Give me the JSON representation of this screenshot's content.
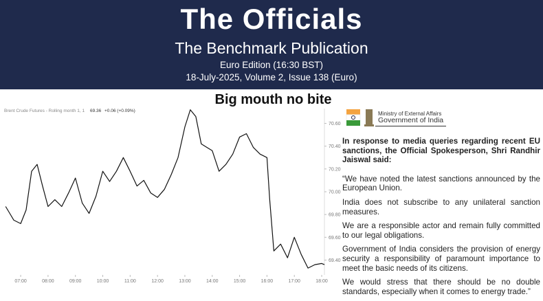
{
  "header": {
    "title": "The Officials",
    "subtitle": "The Benchmark Publication",
    "edition": "Euro Edition (16:30 BST)",
    "issue": "18-July-2025, Volume 2, Issue 138 (Euro)"
  },
  "headline": "Big mouth no bite",
  "chart_data": {
    "type": "line",
    "title": "Brent Crude Futures - Rolling month 1, 1",
    "last_value": "69.36",
    "change": "+0.06 (+0.09%)",
    "color": "#111111",
    "x": [
      6.45,
      6.6,
      6.75,
      7.0,
      7.2,
      7.4,
      7.6,
      7.8,
      8.0,
      8.25,
      8.5,
      8.75,
      9.0,
      9.25,
      9.5,
      9.75,
      10.0,
      10.25,
      10.5,
      10.75,
      11.0,
      11.25,
      11.5,
      11.75,
      12.0,
      12.25,
      12.5,
      12.75,
      13.0,
      13.2,
      13.4,
      13.6,
      13.8,
      14.0,
      14.25,
      14.5,
      14.75,
      15.0,
      15.25,
      15.5,
      15.75,
      16.0,
      16.1,
      16.25,
      16.5,
      16.75,
      17.0,
      17.25,
      17.5,
      17.75,
      18.0,
      18.1
    ],
    "values": [
      69.87,
      69.81,
      69.75,
      69.72,
      69.84,
      70.18,
      70.24,
      70.05,
      69.87,
      69.93,
      69.87,
      69.99,
      70.12,
      69.9,
      69.81,
      69.96,
      70.18,
      70.09,
      70.18,
      70.3,
      70.18,
      70.05,
      70.1,
      69.99,
      69.95,
      70.02,
      70.15,
      70.3,
      70.57,
      70.72,
      70.66,
      70.42,
      70.39,
      70.36,
      70.18,
      70.24,
      70.33,
      70.48,
      70.51,
      70.39,
      70.33,
      70.3,
      69.93,
      69.48,
      69.54,
      69.42,
      69.6,
      69.45,
      69.33,
      69.36,
      69.37,
      69.36
    ],
    "xlim": [
      6.37,
      18.15
    ],
    "ylim": [
      69.27,
      70.73
    ],
    "xticks": [
      {
        "value": 7,
        "label": "07:00"
      },
      {
        "value": 8,
        "label": "08:00"
      },
      {
        "value": 9,
        "label": "09:00"
      },
      {
        "value": 10,
        "label": "10:00"
      },
      {
        "value": 11,
        "label": "11:00"
      },
      {
        "value": 12,
        "label": "12:00"
      },
      {
        "value": 13,
        "label": "13:00"
      },
      {
        "value": 14,
        "label": "14:00"
      },
      {
        "value": 15,
        "label": "15:00"
      },
      {
        "value": 16,
        "label": "16:00"
      },
      {
        "value": 17,
        "label": "17:00"
      },
      {
        "value": 18,
        "label": "18:00"
      }
    ],
    "yticks": [
      {
        "value": 69.4,
        "label": "69.40"
      },
      {
        "value": 69.6,
        "label": "69.60"
      },
      {
        "value": 69.8,
        "label": "69.80"
      },
      {
        "value": 70,
        "label": "70.00"
      },
      {
        "value": 70.2,
        "label": "70.20"
      },
      {
        "value": 70.4,
        "label": "70.40"
      },
      {
        "value": 70.6,
        "label": "70.60"
      }
    ]
  },
  "statement": {
    "ministry": "Ministry of External Affairs",
    "government": "Government of India",
    "intro": "In response to media queries regarding recent EU sanctions, the Official Spokesperson, Shri Randhir Jaiswal said:",
    "paragraphs": [
      "“We have noted the latest sanctions announced by the European Union.",
      "India does not subscribe to any unilateral sanction measures.",
      "We are a responsible actor and remain fully committed to our legal obligations.",
      "Government of India considers the provision of energy security a responsibility of paramount importance to meet the basic needs of its citizens.",
      "We would stress that there should be no double standards, especially when it comes to energy trade.”"
    ]
  }
}
